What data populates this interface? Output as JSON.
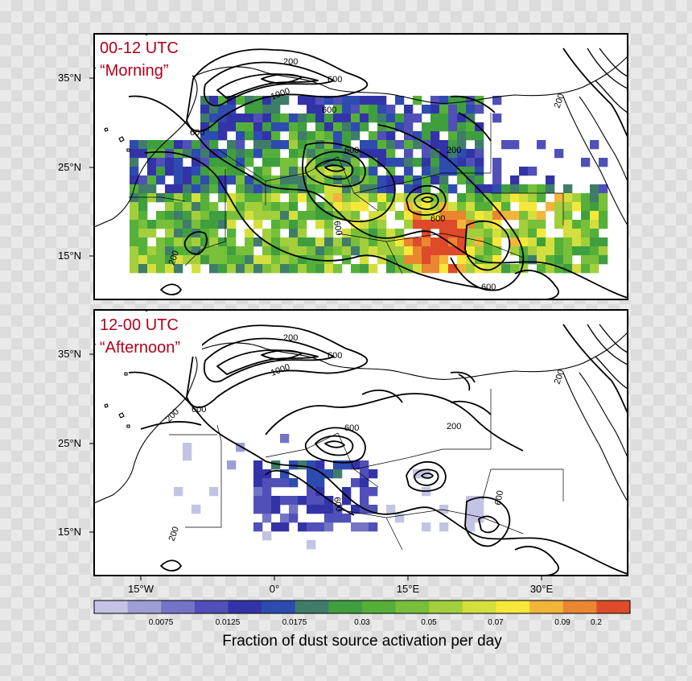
{
  "panels": [
    {
      "id": "morning",
      "title_line1": "00-12 UTC",
      "title_line2": "“Morning”",
      "contour_labels": [
        "200",
        "600",
        "1000",
        "600",
        "200",
        "600",
        "600",
        "200",
        "600",
        "600",
        "200",
        "1000"
      ]
    },
    {
      "id": "afternoon",
      "title_line1": "12-00 UTC",
      "title_line2": "“Afternoon”",
      "contour_labels": [
        "200",
        "600",
        "1000",
        "200",
        "600",
        "200",
        "600",
        "200",
        "600",
        "200"
      ]
    }
  ],
  "lat_labels": [
    "35°N",
    "25°N",
    "15°N"
  ],
  "lon_labels": [
    "15°W",
    "0°",
    "15°E",
    "30°E"
  ],
  "colorbar": {
    "colors": [
      "#c3c3e3",
      "#9e9ed6",
      "#7474c7",
      "#5050b8",
      "#3333a8",
      "#2e4bb0",
      "#3f7d6a",
      "#3f9f3f",
      "#55b03a",
      "#78c03a",
      "#a3cf3c",
      "#d3df3e",
      "#f6e83a",
      "#f2b53a",
      "#ea8530",
      "#de4a2a"
    ],
    "tick_labels": [
      "0.0075",
      "0.0125",
      "0.0175",
      "0.03",
      "0.05",
      "0.07",
      "0.09",
      "0.2"
    ],
    "title": "Fraction of dust source activation per day"
  },
  "chart_data": {
    "type": "heatmap",
    "description_units": "fraction of dust source activation per day",
    "lon_range": [
      -22,
      40
    ],
    "lat_range": [
      10,
      40
    ],
    "panels": [
      {
        "name": "00-12 UTC “Morning”",
        "activation_hotspots": [
          {
            "lon": 5,
            "lat": 21,
            "value": 0.09
          },
          {
            "lon": 16,
            "lat": 19,
            "value": 0.2
          },
          {
            "lon": 18,
            "lat": 17,
            "value": 0.2
          },
          {
            "lon": 22,
            "lat": 19,
            "value": 0.09
          },
          {
            "lon": 32,
            "lat": 18,
            "value": 0.09
          }
        ]
      },
      {
        "name": "12-00 UTC “Afternoon”",
        "activation_hotspots": [
          {
            "lon": 2,
            "lat": 20,
            "value": 0.0175
          },
          {
            "lon": 6,
            "lat": 18,
            "value": 0.0175
          },
          {
            "lon": 8,
            "lat": 17,
            "value": 0.03
          }
        ]
      }
    ]
  }
}
